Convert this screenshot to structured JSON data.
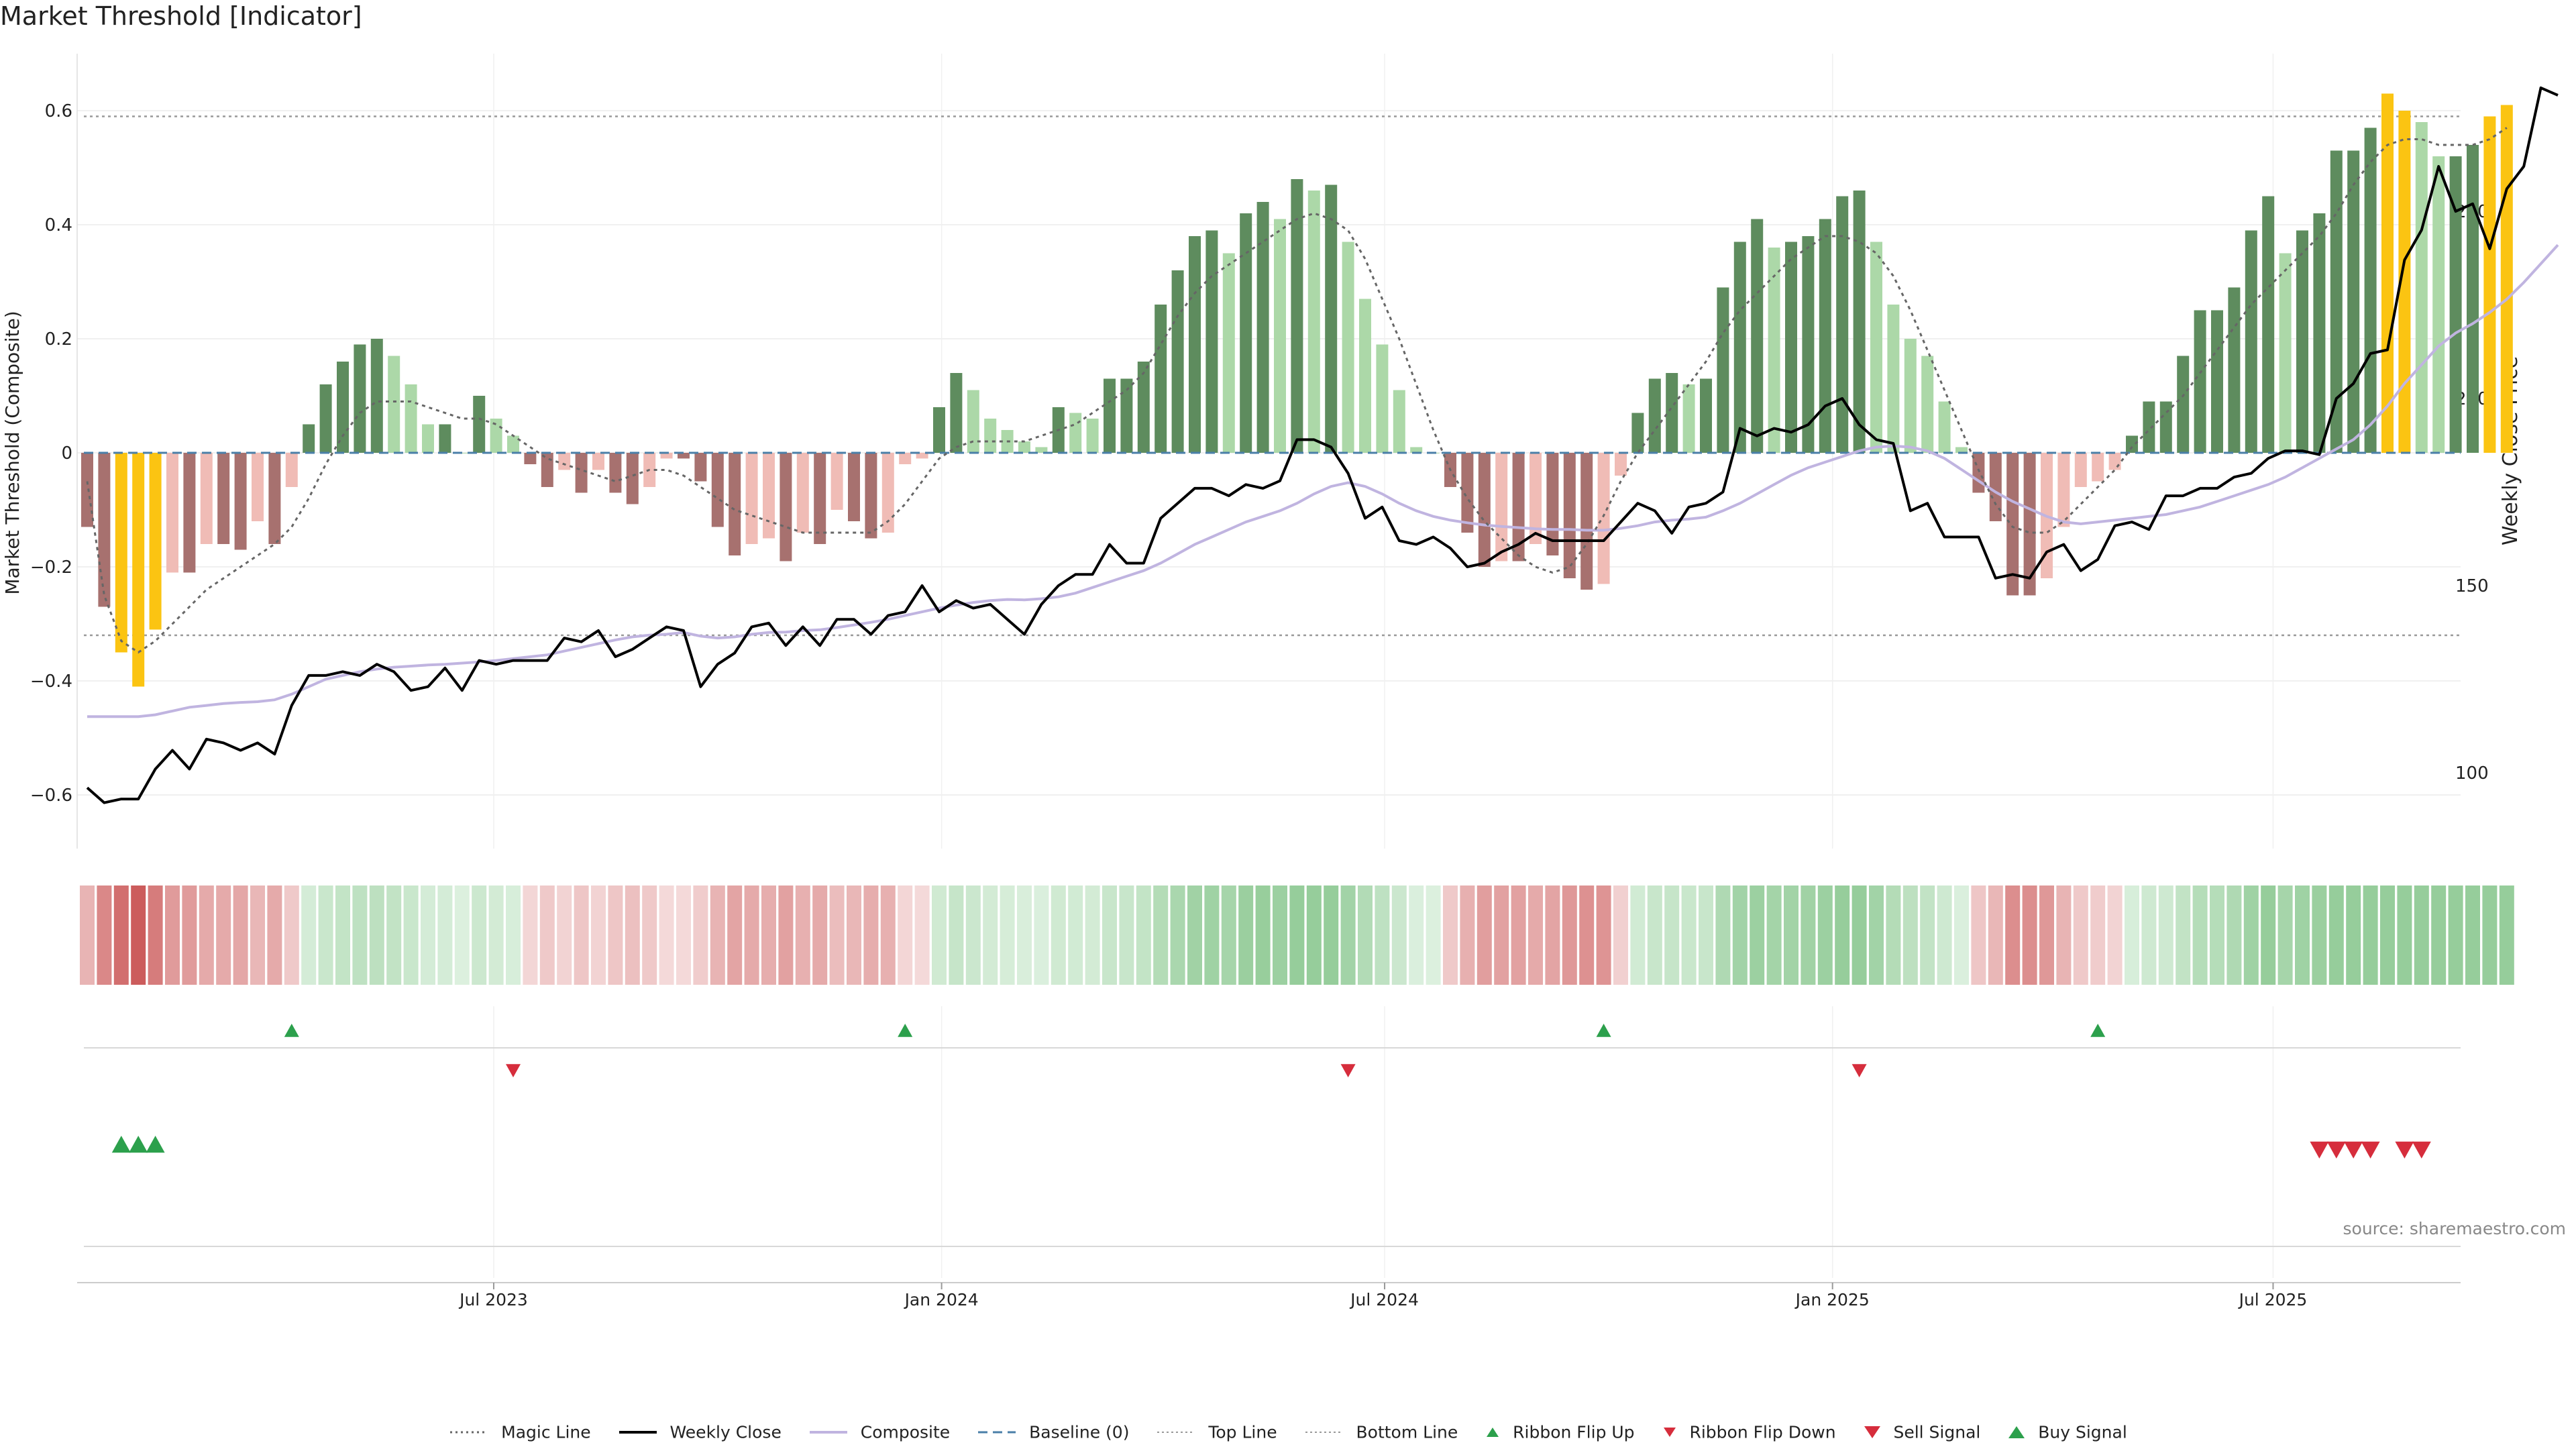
{
  "title": "Market Threshold [Indicator]",
  "source_note": "source: sharemaestro.com",
  "colors": {
    "bull_dark": "#5e8c5e",
    "bull_light": "#acd8a8",
    "bear_dark": "#a7716f",
    "bear_light": "#f0bcb6",
    "extreme": "#fbc412",
    "price": "#000000",
    "composite": "#c0b4e0",
    "magic": "#666666",
    "flip_up": "#2ca04c",
    "flip_down": "#d62d3c"
  },
  "legend": [
    {
      "label": "Magic Line",
      "icon": "dotted-line-icon"
    },
    {
      "label": "Weekly Close",
      "icon": "solid-line-icon"
    },
    {
      "label": "Composite",
      "icon": "purple-line-icon"
    },
    {
      "label": "Baseline (0)",
      "icon": "dashed-line-icon"
    },
    {
      "label": "Top Line",
      "icon": "dotted-line-icon"
    },
    {
      "label": "Bottom Line",
      "icon": "dotted-line-icon"
    },
    {
      "label": "Ribbon Flip Up",
      "icon": "triangle-up-icon"
    },
    {
      "label": "Ribbon Flip Down",
      "icon": "triangle-down-icon"
    },
    {
      "label": "Sell Signal",
      "icon": "triangle-down-icon"
    },
    {
      "label": "Buy Signal",
      "icon": "triangle-up-icon"
    }
  ],
  "chart_data": {
    "type": "bar",
    "title": "Market Threshold [Indicator]",
    "ylabel": "Market Threshold (Composite)",
    "ylabel_right": "Weekly Close Price",
    "ylim": [
      -0.7,
      0.7
    ],
    "ylim_right": [
      85,
      290
    ],
    "yticks": [
      -0.6,
      -0.4,
      -0.2,
      0,
      0.2,
      0.4,
      0.6
    ],
    "ytick_labels": [
      "−0.6",
      "−0.4",
      "−0.2",
      "0",
      "0.2",
      "0.4",
      "0.6"
    ],
    "yticks_right": [
      100,
      150,
      200,
      250
    ],
    "top_line": 0.59,
    "bottom_line": -0.32,
    "x_start": "2023-01-15",
    "x_step_days": 7,
    "x_ticks": [
      {
        "date": "2023-07-01",
        "label": "Jul 2023"
      },
      {
        "date": "2024-01-01",
        "label": "Jan 2024"
      },
      {
        "date": "2024-07-01",
        "label": "Jul 2024"
      },
      {
        "date": "2025-01-01",
        "label": "Jan 2025"
      },
      {
        "date": "2025-07-01",
        "label": "Jul 2025"
      }
    ],
    "composite_bars": [
      -0.13,
      -0.27,
      -0.35,
      -0.41,
      -0.31,
      -0.21,
      -0.21,
      -0.16,
      -0.16,
      -0.17,
      -0.12,
      -0.16,
      -0.06,
      0.05,
      0.12,
      0.16,
      0.19,
      0.2,
      0.17,
      0.12,
      0.05,
      0.05,
      0.0,
      0.1,
      0.06,
      0.03,
      -0.02,
      -0.06,
      -0.03,
      -0.07,
      -0.03,
      -0.07,
      -0.09,
      -0.06,
      -0.01,
      -0.01,
      -0.05,
      -0.13,
      -0.18,
      -0.16,
      -0.15,
      -0.19,
      -0.14,
      -0.16,
      -0.1,
      -0.12,
      -0.15,
      -0.14,
      -0.02,
      -0.01,
      0.08,
      0.14,
      0.11,
      0.06,
      0.04,
      0.02,
      0.01,
      0.08,
      0.07,
      0.06,
      0.13,
      0.13,
      0.16,
      0.26,
      0.32,
      0.38,
      0.39,
      0.35,
      0.42,
      0.44,
      0.41,
      0.48,
      0.46,
      0.47,
      0.37,
      0.27,
      0.19,
      0.11,
      0.01,
      0.0,
      -0.06,
      -0.14,
      -0.2,
      -0.19,
      -0.19,
      -0.16,
      -0.18,
      -0.22,
      -0.24,
      -0.23,
      -0.04,
      0.07,
      0.13,
      0.14,
      0.12,
      0.13,
      0.29,
      0.37,
      0.41,
      0.36,
      0.37,
      0.38,
      0.41,
      0.45,
      0.46,
      0.37,
      0.26,
      0.2,
      0.17,
      0.09,
      0.01,
      -0.07,
      -0.12,
      -0.25,
      -0.25,
      -0.22,
      -0.13,
      -0.06,
      -0.05,
      -0.03,
      0.03,
      0.09,
      0.09,
      0.17,
      0.25,
      0.25,
      0.29,
      0.39,
      0.45,
      0.35,
      0.39,
      0.42,
      0.53,
      0.53,
      0.57,
      0.63,
      0.6,
      0.58,
      0.52,
      0.52,
      0.54,
      0.59,
      0.61
    ],
    "weekly_close": [
      96,
      92,
      93,
      93,
      101,
      106,
      101,
      109,
      108,
      106,
      108,
      105,
      118,
      126,
      126,
      127,
      126,
      129,
      127,
      122,
      123,
      128,
      122,
      130,
      129,
      130,
      130,
      130,
      136,
      135,
      138,
      131,
      133,
      136,
      139,
      138,
      123,
      129,
      132,
      139,
      140,
      134,
      139,
      134,
      141,
      141,
      137,
      142,
      143,
      150,
      143,
      146,
      144,
      145,
      141,
      137,
      145,
      150,
      153,
      153,
      161,
      156,
      156,
      168,
      172,
      176,
      176,
      174,
      177,
      176,
      178,
      189,
      189,
      187,
      180,
      168,
      171,
      162,
      161,
      163,
      160,
      155,
      156,
      159,
      161,
      164,
      162,
      162,
      162,
      162,
      167,
      172,
      170,
      164,
      171,
      172,
      175,
      192,
      190,
      192,
      191,
      193,
      198,
      200,
      193,
      189,
      188,
      170,
      172,
      163,
      163,
      163,
      152,
      153,
      152,
      159,
      161,
      154,
      157,
      166,
      167,
      165,
      174,
      174,
      176,
      176,
      179,
      180,
      184,
      186,
      186,
      185,
      200,
      204,
      212,
      213,
      237,
      245,
      262,
      250,
      252,
      240,
      256,
      262,
      283,
      281
    ],
    "composite_line": [
      115,
      115,
      115,
      115,
      115.5,
      116.5,
      117.5,
      118,
      118.5,
      118.8,
      119,
      119.5,
      121,
      123,
      125,
      126,
      127,
      127.7,
      128.2,
      128.5,
      128.8,
      129,
      129.3,
      129.6,
      130,
      130.5,
      131,
      131.5,
      132.5,
      133.5,
      134.5,
      135.5,
      136.3,
      136.8,
      137,
      137.5,
      136.5,
      136,
      136.3,
      137,
      137.5,
      137.6,
      138,
      138.2,
      138.8,
      139.5,
      140.2,
      141,
      142,
      143,
      144,
      144.8,
      145.5,
      146,
      146.3,
      146.2,
      146.5,
      147,
      148,
      149.5,
      151,
      152.5,
      154,
      156,
      158.5,
      161,
      163,
      165,
      167,
      168.5,
      170,
      172,
      174.5,
      176.5,
      177.5,
      176.5,
      174.5,
      172,
      170,
      168.5,
      167.5,
      166.8,
      166.2,
      165.8,
      165.5,
      165.2,
      165,
      165,
      164.8,
      164.8,
      165.3,
      166,
      167,
      167.5,
      167.8,
      168.3,
      170,
      172,
      174.5,
      177,
      179.5,
      181.5,
      183,
      184.5,
      186,
      187,
      187.3,
      187,
      186,
      184,
      181,
      178,
      175,
      172.5,
      170.5,
      168.5,
      167,
      166.5,
      167,
      167.5,
      168,
      168.5,
      169,
      170,
      171,
      172.5,
      174,
      175.5,
      177,
      179,
      181.5,
      184,
      186.5,
      189,
      193,
      198,
      204,
      209,
      214,
      217.5,
      220,
      223,
      226.5,
      231,
      236,
      241
    ],
    "magic_line": [
      -0.05,
      -0.25,
      -0.33,
      -0.35,
      -0.33,
      -0.3,
      -0.27,
      -0.24,
      -0.22,
      -0.2,
      -0.18,
      -0.16,
      -0.13,
      -0.08,
      -0.02,
      0.03,
      0.07,
      0.09,
      0.09,
      0.09,
      0.08,
      0.07,
      0.06,
      0.06,
      0.05,
      0.03,
      0.01,
      -0.01,
      -0.02,
      -0.03,
      -0.04,
      -0.05,
      -0.04,
      -0.03,
      -0.03,
      -0.04,
      -0.06,
      -0.08,
      -0.1,
      -0.11,
      -0.12,
      -0.13,
      -0.14,
      -0.14,
      -0.14,
      -0.14,
      -0.14,
      -0.12,
      -0.09,
      -0.05,
      -0.01,
      0.01,
      0.02,
      0.02,
      0.02,
      0.02,
      0.03,
      0.04,
      0.05,
      0.07,
      0.09,
      0.11,
      0.14,
      0.19,
      0.24,
      0.28,
      0.31,
      0.33,
      0.35,
      0.37,
      0.39,
      0.41,
      0.42,
      0.41,
      0.39,
      0.34,
      0.27,
      0.2,
      0.12,
      0.04,
      -0.03,
      -0.08,
      -0.12,
      -0.15,
      -0.18,
      -0.2,
      -0.21,
      -0.2,
      -0.16,
      -0.11,
      -0.05,
      0.0,
      0.04,
      0.08,
      0.12,
      0.16,
      0.21,
      0.25,
      0.28,
      0.31,
      0.34,
      0.36,
      0.38,
      0.38,
      0.37,
      0.35,
      0.31,
      0.25,
      0.18,
      0.11,
      0.04,
      -0.03,
      -0.09,
      -0.13,
      -0.14,
      -0.14,
      -0.12,
      -0.09,
      -0.06,
      -0.03,
      0.01,
      0.04,
      0.07,
      0.1,
      0.14,
      0.18,
      0.22,
      0.26,
      0.29,
      0.32,
      0.35,
      0.38,
      0.42,
      0.47,
      0.51,
      0.54,
      0.55,
      0.55,
      0.54,
      0.54,
      0.54,
      0.55,
      0.57
    ],
    "ribbon_flip_up_weeks": [
      12,
      48,
      89,
      118
    ],
    "ribbon_flip_down_weeks": [
      25,
      74,
      104
    ],
    "buy_signal_weeks": [
      2,
      3,
      4
    ],
    "sell_signal_weeks": [
      131,
      132,
      133,
      134,
      136,
      137
    ]
  }
}
